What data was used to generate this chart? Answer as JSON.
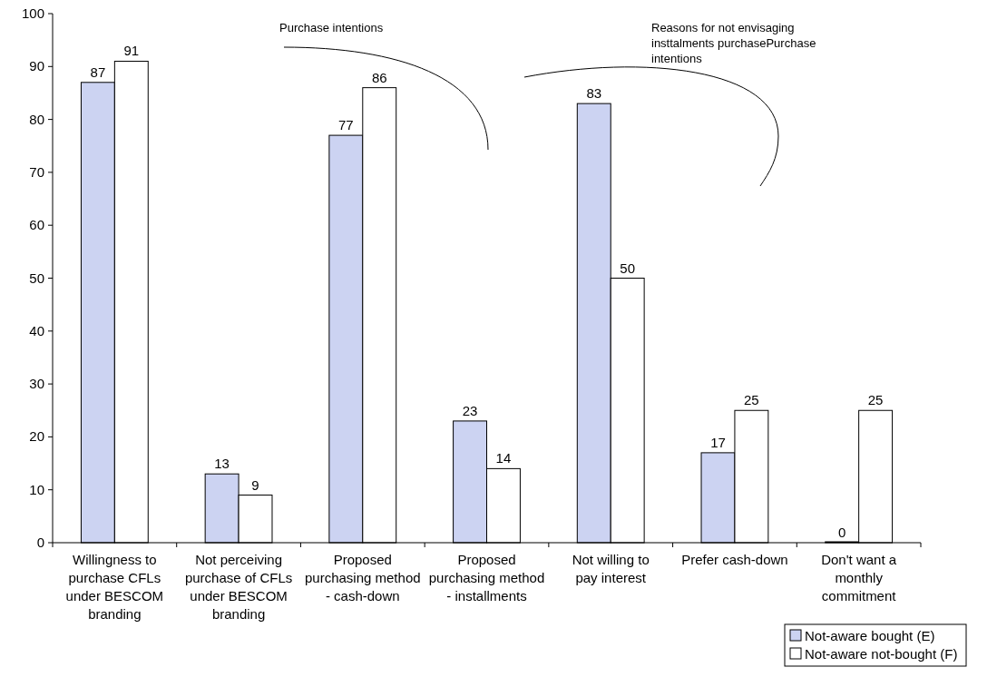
{
  "chart_data": {
    "type": "bar",
    "categories": [
      "Willingness to purchase CFLs under BESCOM branding",
      "Not perceiving purchase of CFLs under BESCOM branding",
      "Proposed purchasing method - cash-down",
      "Proposed purchasing method - installments",
      "Not willing to pay interest",
      "Prefer cash-down",
      "Don't want a monthly commitment"
    ],
    "series": [
      {
        "name": "Not-aware bought (E)",
        "color": "#ccd3f2",
        "values": [
          87,
          13,
          77,
          23,
          83,
          17,
          0
        ]
      },
      {
        "name": "Not-aware not-bought (F)",
        "color": "#ffffff",
        "values": [
          91,
          9,
          86,
          14,
          50,
          25,
          25
        ]
      }
    ],
    "ylim": [
      0,
      100
    ],
    "yticks": [
      0,
      10,
      20,
      30,
      40,
      50,
      60,
      70,
      80,
      90,
      100
    ],
    "data_labels": true,
    "legend": "bottom right",
    "grid": false,
    "annotations": [
      "Purchase intentions",
      "Reasons for not envisaging insttalments purchasePurchase intentions"
    ]
  }
}
